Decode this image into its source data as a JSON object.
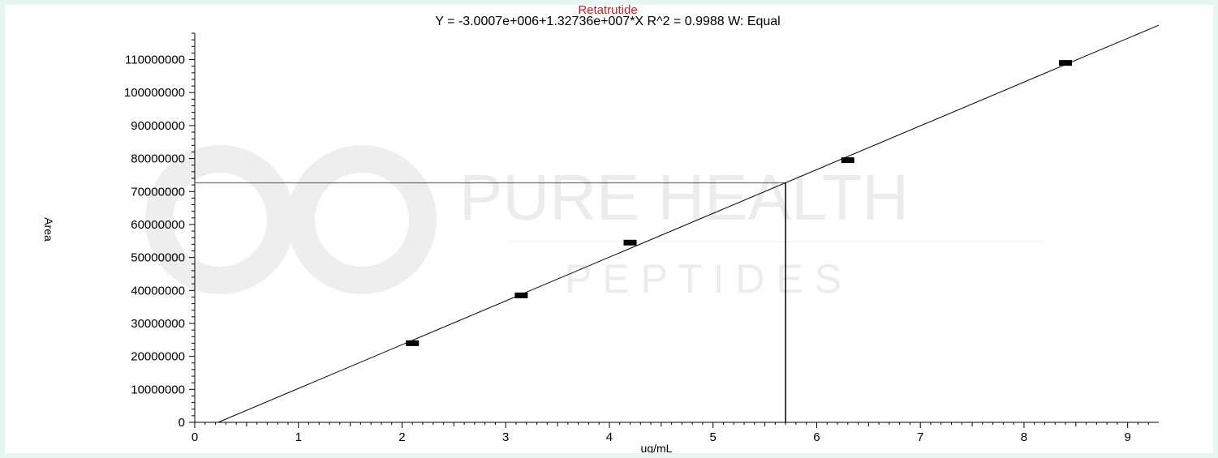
{
  "chart_data": {
    "type": "scatter",
    "title": "Retatrutide",
    "subtitle": "Y = -3.0007e+006+1.32736e+007*X   R^2 = 0.9988   W: Equal",
    "xlabel": "ug/mL",
    "ylabel": "Area",
    "xlim": [
      0,
      9.3
    ],
    "ylim": [
      0,
      118000000
    ],
    "x_ticks": [
      "0",
      "1",
      "2",
      "3",
      "4",
      "5",
      "6",
      "7",
      "8",
      "9"
    ],
    "y_ticks": [
      "0",
      "10000000",
      "20000000",
      "30000000",
      "40000000",
      "50000000",
      "60000000",
      "70000000",
      "80000000",
      "90000000",
      "100000000",
      "110000000"
    ],
    "series": [
      {
        "x": [
          2.1,
          3.15,
          4.2,
          6.3,
          8.4
        ],
        "y": [
          24000000,
          38500000,
          54500000,
          79500000,
          109000000
        ]
      }
    ],
    "fit_line": {
      "intercept": -3000700,
      "slope": 13273600
    },
    "readout": {
      "x": 5.7,
      "y": 72600000
    },
    "grid": false,
    "legend": "none",
    "colors": {
      "title": "#e0161b",
      "axis": "#000000",
      "marker": "#000000",
      "background": "#e6f6f1"
    }
  },
  "watermark": {
    "line1": "PURE HEALTH",
    "line2": "P E P T I D E S"
  }
}
